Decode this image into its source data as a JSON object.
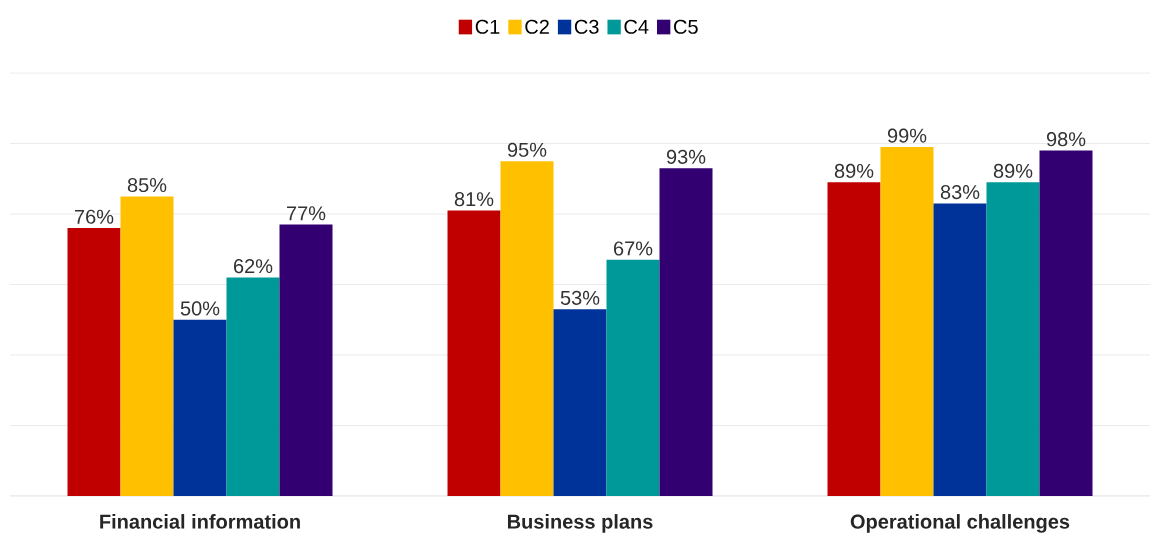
{
  "chart_data": {
    "type": "bar",
    "categories": [
      "Financial information",
      "Business plans",
      "Operational challenges"
    ],
    "series": [
      {
        "name": "C1",
        "color": "#c00000",
        "values": [
          76,
          81,
          89
        ],
        "value_labels": [
          "76%",
          "81%",
          "89%"
        ]
      },
      {
        "name": "C2",
        "color": "#ffc000",
        "values": [
          85,
          95,
          99
        ],
        "value_labels": [
          "85%",
          "95%",
          "99%"
        ]
      },
      {
        "name": "C3",
        "color": "#003399",
        "values": [
          50,
          53,
          83
        ],
        "value_labels": [
          "50%",
          "53%",
          "83%"
        ]
      },
      {
        "name": "C4",
        "color": "#009999",
        "values": [
          62,
          67,
          89
        ],
        "value_labels": [
          "62%",
          "67%",
          "89%"
        ]
      },
      {
        "name": "C5",
        "color": "#330072",
        "values": [
          77,
          93,
          98
        ],
        "value_labels": [
          "77%",
          "93%",
          "98%"
        ]
      }
    ],
    "grid": "y",
    "legend": "top",
    "tick_labels": "x"
  }
}
